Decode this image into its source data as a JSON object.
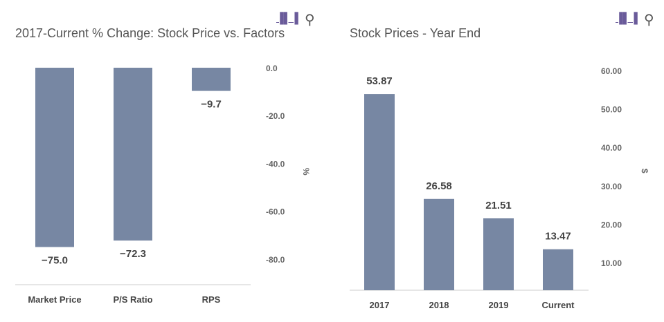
{
  "toolbar": {
    "bar_icon": "bar-chart-icon",
    "search_icon": "search-icon"
  },
  "chart_data": [
    {
      "type": "bar",
      "title": "2017-Current % Change: Stock Price vs. Factors",
      "categories": [
        "Market Price",
        "P/S Ratio",
        "RPS"
      ],
      "values": [
        -75.0,
        -72.3,
        -9.7
      ],
      "data_labels": [
        "−75.0",
        "−72.3",
        "−9.7"
      ],
      "ylabel": "%",
      "yticks": [
        "0.0",
        "-20.0",
        "-40.0",
        "-60.0",
        "-80.0"
      ],
      "ylim": [
        -80,
        0
      ],
      "axis_position": "right",
      "grid": false,
      "color": "#7787a3"
    },
    {
      "type": "bar",
      "title": "Stock Prices - Year End",
      "categories": [
        "2017",
        "2018",
        "2019",
        "Current"
      ],
      "values": [
        53.87,
        26.58,
        21.51,
        13.47
      ],
      "data_labels": [
        "53.87",
        "26.58",
        "21.51",
        "13.47"
      ],
      "ylabel": "$",
      "yticks": [
        "60.00",
        "50.00",
        "40.00",
        "30.00",
        "20.00",
        "10.00"
      ],
      "axis_position": "right",
      "grid": false,
      "color": "#7787a3"
    }
  ]
}
